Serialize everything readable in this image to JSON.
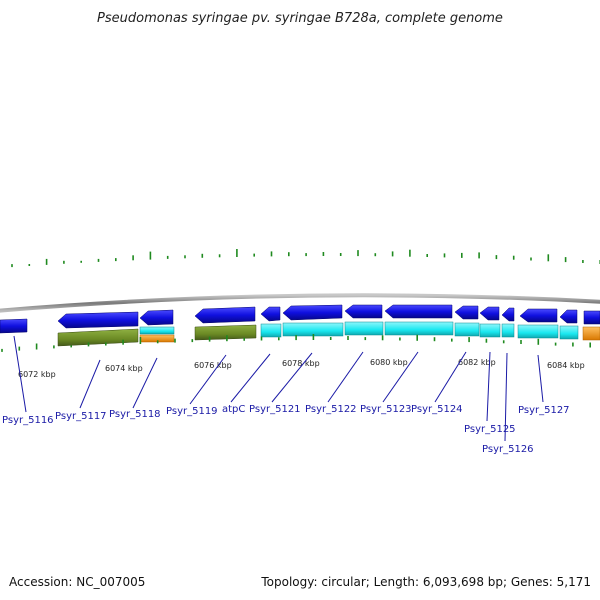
{
  "title": "Pseudomonas syringae pv. syringae B728a, complete genome",
  "footer": {
    "accession": "Accession: NC_007005",
    "summary": "Topology: circular; Length: 6,093,698 bp; Genes: 5,171"
  },
  "axis": {
    "tick_labels": [
      "6072 kbp",
      "6074 kbp",
      "6076 kbp",
      "6078 kbp",
      "6080 kbp",
      "6082 kbp",
      "6084 kbp"
    ]
  },
  "gene_labels": [
    "Psyr_5116",
    "Psyr_5117",
    "Psyr_5118",
    "Psyr_5119",
    "atpC",
    "Psyr_5121",
    "Psyr_5122",
    "Psyr_5123",
    "Psyr_5124",
    "Psyr_5125",
    "Psyr_5126",
    "Psyr_5127"
  ],
  "colors": {
    "gene": "#1010e0",
    "cds_cyan": "#19e8f0",
    "olive": "#6b8a24",
    "orange": "#f59a14",
    "gc_tick": "#1f8a1f",
    "backbone": "#8a8a8a"
  }
}
